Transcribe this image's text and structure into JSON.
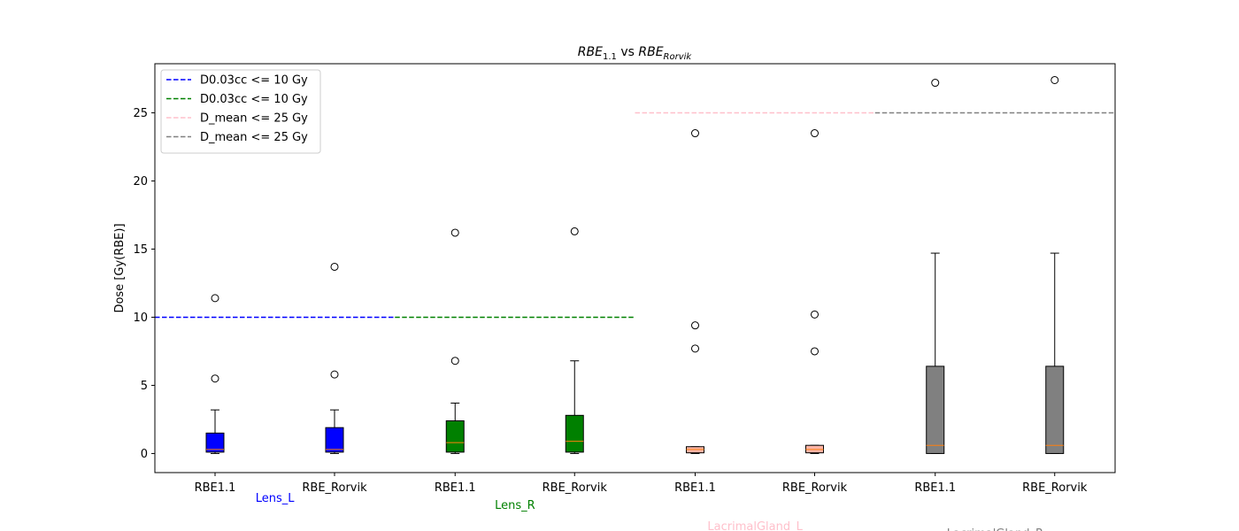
{
  "chart_data": {
    "type": "boxplot",
    "title": {
      "left_base": "RBE",
      "left_sub": "1.1",
      "mid": " vs ",
      "right_base": "RBE",
      "right_sub": "Rorvik"
    },
    "ylabel": "Dose [Gy(RBE)]",
    "xlabel": "",
    "ylim": [
      -1.4,
      28.6
    ],
    "yticks": [
      0,
      5,
      10,
      15,
      20,
      25
    ],
    "ytick_labels": [
      "0",
      "5",
      "10",
      "15",
      "20",
      "25"
    ],
    "grid": false,
    "legend_position": "top-left",
    "groups": [
      {
        "name": "Lens_L",
        "color": "#0000ff",
        "boxes": [
          {
            "label": "RBE1.1",
            "whislo": 0.0,
            "q1": 0.1,
            "median": 0.3,
            "q3": 1.5,
            "whishi": 3.2,
            "fliers": [
              5.5,
              11.4
            ]
          },
          {
            "label": "RBE_Rorvik",
            "whislo": 0.0,
            "q1": 0.1,
            "median": 0.3,
            "q3": 1.9,
            "whishi": 3.2,
            "fliers": [
              5.8,
              13.7
            ]
          }
        ],
        "threshold": {
          "legend": "D0.03cc <= 10 Gy",
          "value": 10,
          "color": "#0000ff"
        }
      },
      {
        "name": "Lens_R",
        "color": "#008000",
        "boxes": [
          {
            "label": "RBE1.1",
            "whislo": 0.0,
            "q1": 0.1,
            "median": 0.8,
            "q3": 2.4,
            "whishi": 3.7,
            "fliers": [
              6.8,
              16.2
            ]
          },
          {
            "label": "RBE_Rorvik",
            "whislo": 0.0,
            "q1": 0.1,
            "median": 0.9,
            "q3": 2.8,
            "whishi": 6.8,
            "fliers": [
              16.3
            ]
          }
        ],
        "threshold": {
          "legend": "D0.03cc <= 10 Gy",
          "value": 10,
          "color": "#008000"
        }
      },
      {
        "name": "LacrimalGland_L",
        "color": "#ffc0cb",
        "box_fill": "#fbb4a6",
        "boxes": [
          {
            "label": "RBE1.1",
            "whislo": 0.0,
            "q1": 0.05,
            "median": 0.3,
            "q3": 0.5,
            "whishi": 0.5,
            "fliers": [
              7.7,
              9.4,
              23.5
            ]
          },
          {
            "label": "RBE_Rorvik",
            "whislo": 0.0,
            "q1": 0.05,
            "median": 0.3,
            "q3": 0.6,
            "whishi": 0.6,
            "fliers": [
              7.5,
              10.2,
              23.5
            ]
          }
        ],
        "threshold": {
          "legend": "D_mean <= 25 Gy",
          "value": 25,
          "color": "#ffc0cb"
        }
      },
      {
        "name": "LacrimalGland_R",
        "color": "#808080",
        "boxes": [
          {
            "label": "RBE1.1",
            "whislo": 0.0,
            "q1": 0.0,
            "median": 0.6,
            "q3": 6.4,
            "whishi": 14.7,
            "fliers": [
              27.2
            ]
          },
          {
            "label": "RBE_Rorvik",
            "whislo": 0.0,
            "q1": 0.0,
            "median": 0.6,
            "q3": 6.4,
            "whishi": 14.7,
            "fliers": [
              27.4
            ]
          }
        ],
        "threshold": {
          "legend": "D_mean <= 25 Gy",
          "value": 25,
          "color": "#808080"
        }
      }
    ],
    "median_color": "#ff7f0e"
  }
}
